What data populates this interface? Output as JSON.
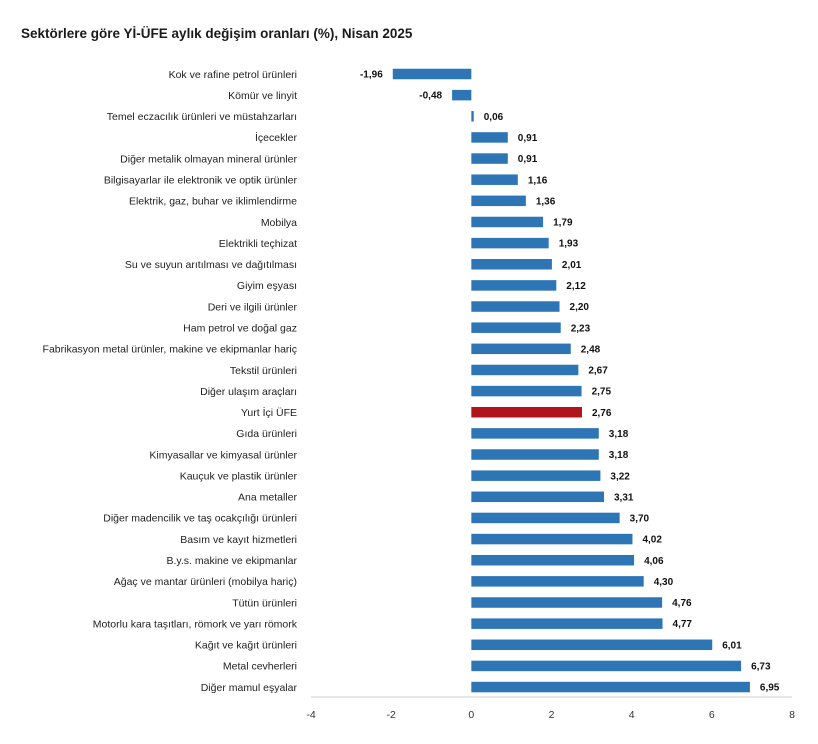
{
  "chart_data": {
    "type": "bar",
    "orientation": "horizontal",
    "title": "Sektörlere göre Yİ-ÜFE aylık değişim oranları (%), Nisan 2025",
    "xlabel": "",
    "ylabel": "",
    "xlim": [
      -4,
      8
    ],
    "xticks": [
      -4,
      -2,
      0,
      2,
      4,
      6,
      8
    ],
    "grid": false,
    "colors": {
      "default": "#2e75b6",
      "highlight": "#b0151d"
    },
    "highlight_category": "Yurt İçi ÜFE",
    "categories": [
      "Kok ve rafine petrol ürünleri",
      "Kömür ve linyit",
      "Temel eczacılık ürünleri ve müstahzarları",
      "İçecekler",
      "Diğer metalik olmayan mineral ürünler",
      "Bilgisayarlar ile elektronik ve optik ürünler",
      "Elektrik, gaz, buhar ve iklimlendirme",
      "Mobilya",
      "Elektrikli teçhizat",
      "Su ve suyun arıtılması ve dağıtılması",
      "Giyim eşyası",
      "Deri ve ilgili ürünler",
      "Ham petrol ve doğal gaz",
      "Fabrikasyon metal ürünler, makine ve ekipmanlar hariç",
      "Tekstil ürünleri",
      "Diğer ulaşım araçları",
      "Yurt İçi ÜFE",
      "Gıda ürünleri",
      "Kimyasallar ve kimyasal ürünler",
      "Kauçuk ve plastik ürünler",
      "Ana metaller",
      "Diğer madencilik ve taş ocakçılığı ürünleri",
      "Basım ve kayıt hizmetleri",
      "B.y.s. makine ve ekipmanlar",
      "Ağaç ve mantar ürünleri (mobilya hariç)",
      "Tütün ürünleri",
      "Motorlu kara taşıtları, römork ve yarı römork",
      "Kağıt ve kağıt ürünleri",
      "Metal cevherleri",
      "Diğer mamul eşyalar"
    ],
    "values": [
      -1.96,
      -0.48,
      0.06,
      0.91,
      0.91,
      1.16,
      1.36,
      1.79,
      1.93,
      2.01,
      2.12,
      2.2,
      2.23,
      2.48,
      2.67,
      2.75,
      2.76,
      3.18,
      3.18,
      3.22,
      3.31,
      3.7,
      4.02,
      4.06,
      4.3,
      4.76,
      4.77,
      6.01,
      6.73,
      6.95
    ],
    "value_labels": [
      "-1,96",
      "-0,48",
      "0,06",
      "0,91",
      "0,91",
      "1,16",
      "1,36",
      "1,79",
      "1,93",
      "2,01",
      "2,12",
      "2,20",
      "2,23",
      "2,48",
      "2,67",
      "2,75",
      "2,76",
      "3,18",
      "3,18",
      "3,22",
      "3,31",
      "3,70",
      "4,02",
      "4,06",
      "4,30",
      "4,76",
      "4,77",
      "6,01",
      "6,73",
      "6,95"
    ]
  }
}
